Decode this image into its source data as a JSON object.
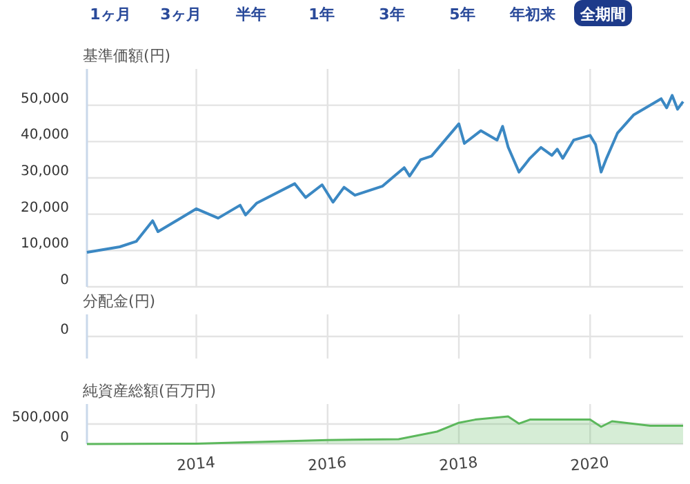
{
  "chart_data": [
    {
      "type": "other",
      "annotations": [
        "1ヶ月",
        "3ヶ月",
        "半年",
        "1年",
        "3年",
        "5年",
        "年初来",
        "全期間"
      ]
    },
    {
      "type": "line",
      "title": "基準価額(円)",
      "color": "#3b88c3",
      "grid": true,
      "tick_labels": "y",
      "xlim": [
        "2012-05",
        "2021-06"
      ],
      "xticks": [
        {
          "value": "2014",
          "label": null
        },
        {
          "value": "2016",
          "label": null
        },
        {
          "value": "2018",
          "label": null
        },
        {
          "value": "2020",
          "label": null
        }
      ],
      "ylim": [
        0,
        60000
      ],
      "yticks": [
        0,
        {
          "value": 10000,
          "label": "10,000"
        },
        {
          "value": 20000,
          "label": "20,000"
        },
        {
          "value": 30000,
          "label": "30,000"
        },
        {
          "value": 40000,
          "label": "40,000"
        },
        {
          "value": 50000,
          "label": "50,000"
        }
      ],
      "x": [
        "2012-05",
        "2012-11",
        "2013-02",
        "2013-05",
        "2013-06",
        "2014-01",
        "2014-05",
        "2014-09",
        "2014-10",
        "2014-12",
        "2015-07",
        "2015-09",
        "2015-12",
        "2016-02",
        "2016-04",
        "2016-06",
        "2016-11",
        "2017-03",
        "2017-04",
        "2017-06",
        "2017-08",
        "2018-01",
        "2018-02",
        "2018-05",
        "2018-08",
        "2018-09",
        "2018-10",
        "2018-12",
        "2019-02",
        "2019-04",
        "2019-06",
        "2019-07",
        "2019-08",
        "2019-10",
        "2020-01",
        "2020-02",
        "2020-03",
        "2020-04",
        "2020-06",
        "2020-09",
        "2021-02",
        "2021-03",
        "2021-04",
        "2021-05",
        "2021-06"
      ],
      "values": [
        9500,
        11000,
        12500,
        18200,
        15200,
        21500,
        18900,
        22500,
        19800,
        23000,
        28400,
        24600,
        28100,
        23300,
        27400,
        25200,
        27700,
        32800,
        30500,
        35000,
        36000,
        44900,
        39500,
        43000,
        40400,
        44200,
        38500,
        31600,
        35400,
        38400,
        36200,
        37900,
        35400,
        40400,
        41700,
        39200,
        31600,
        35400,
        42300,
        47400,
        51800,
        49300,
        52700,
        48900,
        51000
      ]
    },
    {
      "type": "other",
      "title": "分配金(円)",
      "annotations": [
        "0"
      ]
    },
    {
      "type": "area",
      "title": "純資産総額(百万円)",
      "color": "#5cb85c",
      "grid": true,
      "xlim": [
        "2012-05",
        "2021-06"
      ],
      "xticks": [
        "2014",
        "2016",
        "2018",
        "2020"
      ],
      "ylim": [
        0,
        1000000
      ],
      "yticks": [
        0,
        {
          "value": 500000,
          "label": "500,000"
        }
      ],
      "x": [
        "2012-05",
        "2014-01",
        "2016-01",
        "2017-02",
        "2017-09",
        "2018-01",
        "2018-04",
        "2018-10",
        "2018-12",
        "2019-02",
        "2020-01",
        "2020-03",
        "2020-05",
        "2020-12",
        "2021-06"
      ],
      "values": [
        0,
        10000,
        100000,
        120000,
        310000,
        530000,
        610000,
        690000,
        510000,
        610000,
        610000,
        430000,
        570000,
        460000,
        460000
      ]
    }
  ]
}
